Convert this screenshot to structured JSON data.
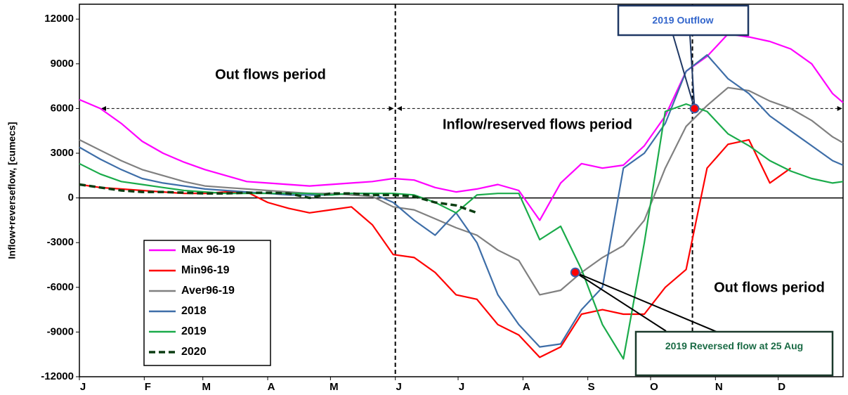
{
  "chart_data": {
    "type": "line",
    "y_label": "Inflow+reverseflow, [cumecs]",
    "xlim": [
      0,
      365
    ],
    "xticks": [
      {
        "value": 0,
        "label": "J"
      },
      {
        "value": 31,
        "label": "F"
      },
      {
        "value": 59,
        "label": "M"
      },
      {
        "value": 90,
        "label": "A"
      },
      {
        "value": 120,
        "label": "M"
      },
      {
        "value": 151,
        "label": "J"
      },
      {
        "value": 181,
        "label": "J"
      },
      {
        "value": 212,
        "label": "A"
      },
      {
        "value": 243,
        "label": "S"
      },
      {
        "value": 273,
        "label": "O"
      },
      {
        "value": 304,
        "label": "N"
      },
      {
        "value": 334,
        "label": "D"
      }
    ],
    "ylim": [
      -12000,
      13000
    ],
    "yticks": [
      -12000,
      -9000,
      -6000,
      -3000,
      0,
      3000,
      6000,
      9000,
      12000
    ],
    "x": [
      0,
      10,
      20,
      30,
      40,
      50,
      60,
      70,
      80,
      90,
      100,
      110,
      120,
      130,
      140,
      150,
      160,
      170,
      180,
      190,
      200,
      210,
      220,
      230,
      240,
      250,
      260,
      270,
      280,
      290,
      300,
      310,
      320,
      330,
      340,
      350,
      360,
      365
    ],
    "series": [
      {
        "name": "Max 96-19",
        "color": "#ff00ff",
        "style": "solid",
        "values": [
          6600,
          6000,
          5000,
          3800,
          3000,
          2400,
          1900,
          1500,
          1100,
          1000,
          900,
          800,
          900,
          1000,
          1100,
          1300,
          1200,
          700,
          400,
          600,
          900,
          500,
          -1500,
          1000,
          2300,
          2000,
          2200,
          3500,
          5500,
          8500,
          9500,
          11000,
          10800,
          10500,
          10000,
          9000,
          7000,
          6400
        ]
      },
      {
        "name": "Min96-19",
        "color": "#ff0000",
        "style": "solid",
        "values": [
          900,
          700,
          600,
          500,
          400,
          300,
          300,
          400,
          400,
          -300,
          -700,
          -1000,
          -800,
          -600,
          -1800,
          -3800,
          -4000,
          -5000,
          -6500,
          -6800,
          -8500,
          -9200,
          -10700,
          -10000,
          -7800,
          -7500,
          -7800,
          -7800,
          -6000,
          -4800,
          2000,
          3600,
          3900,
          1000,
          2000,
          null,
          null,
          null
        ]
      },
      {
        "name": "Aver96-19",
        "color": "#808080",
        "style": "solid",
        "values": [
          3900,
          3200,
          2500,
          1900,
          1500,
          1100,
          800,
          700,
          600,
          500,
          400,
          300,
          300,
          200,
          100,
          -600,
          -800,
          -1400,
          -2000,
          -2500,
          -3500,
          -4200,
          -6500,
          -6200,
          -5000,
          -4000,
          -3200,
          -1500,
          2000,
          4800,
          6200,
          7400,
          7200,
          6500,
          6000,
          5200,
          4100,
          3700
        ]
      },
      {
        "name": "2018",
        "color": "#3e6ea8",
        "style": "solid",
        "values": [
          3400,
          2600,
          1900,
          1300,
          1000,
          800,
          600,
          500,
          400,
          300,
          200,
          200,
          200,
          300,
          300,
          -300,
          -1500,
          -2500,
          -1000,
          -3000,
          -6500,
          -8500,
          -10000,
          -9800,
          -7500,
          -6000,
          2000,
          3000,
          5000,
          8500,
          9600,
          8000,
          7000,
          5500,
          4500,
          3500,
          2500,
          2200
        ]
      },
      {
        "name": "2019",
        "color": "#1aab4a",
        "style": "solid",
        "values": [
          2300,
          1600,
          1100,
          900,
          700,
          500,
          400,
          300,
          300,
          300,
          300,
          300,
          200,
          300,
          300,
          300,
          200,
          -300,
          -1000,
          200,
          300,
          300,
          -2800,
          -1900,
          -4800,
          -8500,
          -10800,
          -3000,
          5800,
          6300,
          5800,
          4300,
          3500,
          2500,
          1800,
          1300,
          1000,
          1100
        ]
      },
      {
        "name": "2020",
        "color": "#0b3d12",
        "style": "dashed",
        "values": [
          900,
          700,
          500,
          400,
          400,
          350,
          300,
          300,
          350,
          350,
          300,
          0,
          300,
          300,
          200,
          200,
          100,
          -300,
          -500,
          -1000,
          null,
          null,
          null,
          null,
          null,
          null,
          null,
          null,
          null,
          null,
          null,
          null,
          null,
          null,
          null,
          null,
          null,
          null
        ]
      }
    ],
    "reference_lines": {
      "x": [
        151,
        293
      ],
      "y": 6000
    },
    "periods": [
      "Out flows period",
      "Inflow/reserved flows period",
      "Out flows period"
    ],
    "annotations": [
      {
        "text": "2019 Outflow",
        "x": 294,
        "y": 6000
      },
      {
        "text": "2019 Reversed flow at 25 Aug",
        "x": 237,
        "y": -5000
      }
    ],
    "grid": false
  }
}
